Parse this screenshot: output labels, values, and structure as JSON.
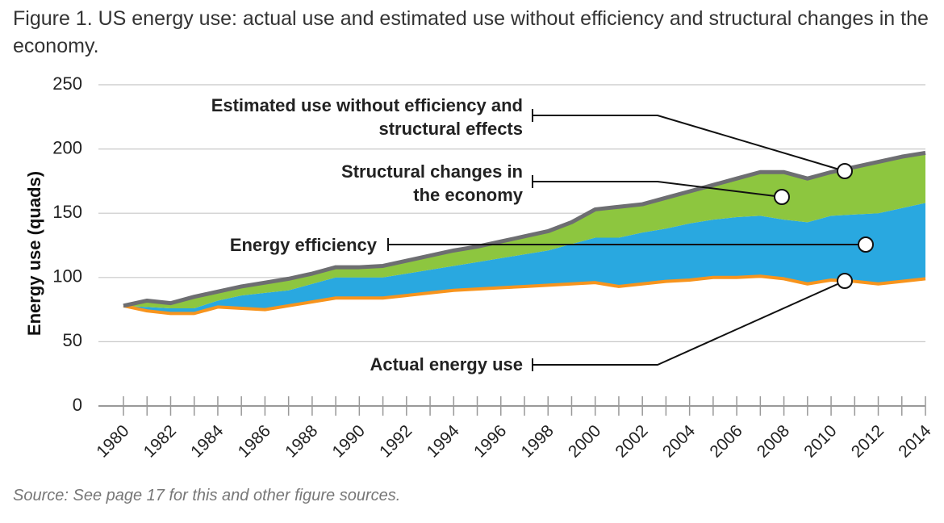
{
  "chart_data": {
    "type": "area",
    "title": "Figure 1. US energy use: actual use and estimated use without efficiency and structural changes in the economy.",
    "y_label": "Energy use (quads)",
    "source": "Source: See page 17 for this and other figure sources.",
    "x": [
      1980,
      1981,
      1982,
      1983,
      1984,
      1985,
      1986,
      1987,
      1988,
      1989,
      1990,
      1991,
      1992,
      1993,
      1994,
      1995,
      1996,
      1997,
      1998,
      1999,
      2000,
      2001,
      2002,
      2003,
      2004,
      2005,
      2006,
      2007,
      2008,
      2009,
      2010,
      2011,
      2012,
      2013,
      2014
    ],
    "xlim": [
      1980,
      2014
    ],
    "xticks": [
      1980,
      1982,
      1984,
      1986,
      1988,
      1990,
      1992,
      1994,
      1996,
      1998,
      2000,
      2002,
      2004,
      2006,
      2008,
      2010,
      2012,
      2014
    ],
    "ylim": [
      0,
      250
    ],
    "yticks": [
      0,
      50,
      100,
      150,
      200,
      250
    ],
    "grid": true,
    "series": [
      {
        "name": "Actual energy use",
        "type": "line",
        "color": "#f7941d",
        "values": [
          78,
          74,
          72,
          72,
          77,
          76,
          75,
          78,
          81,
          84,
          84,
          84,
          86,
          88,
          90,
          91,
          92,
          93,
          94,
          95,
          96,
          93,
          95,
          97,
          98,
          100,
          100,
          101,
          99,
          95,
          98,
          97,
          95,
          97,
          99
        ]
      },
      {
        "name": "Energy efficiency",
        "type": "area",
        "color": "#29a8e0",
        "values": [
          0,
          3,
          4,
          4,
          5,
          10,
          13,
          12,
          14,
          16,
          16,
          16,
          17,
          18,
          19,
          21,
          23,
          25,
          27,
          31,
          35,
          38,
          40,
          41,
          44,
          45,
          47,
          47,
          46,
          48,
          50,
          52,
          55,
          57,
          59
        ]
      },
      {
        "name": "Structural changes in the economy",
        "type": "area",
        "color": "#8dc63f",
        "values": [
          0,
          5,
          4,
          9,
          7,
          7,
          8,
          9,
          8,
          8,
          8,
          9,
          10,
          11,
          12,
          12,
          13,
          14,
          15,
          17,
          22,
          24,
          22,
          24,
          25,
          27,
          30,
          34,
          37,
          34,
          34,
          37,
          40,
          40,
          39
        ]
      },
      {
        "name": "Estimated use without efficiency and structural effects",
        "type": "line",
        "color": "#6d6e71",
        "values": [
          78,
          82,
          80,
          85,
          89,
          93,
          96,
          99,
          103,
          108,
          108,
          109,
          113,
          117,
          121,
          124,
          128,
          132,
          136,
          143,
          153,
          155,
          157,
          162,
          167,
          172,
          177,
          182,
          182,
          177,
          182,
          186,
          190,
          194,
          197
        ]
      }
    ]
  }
}
